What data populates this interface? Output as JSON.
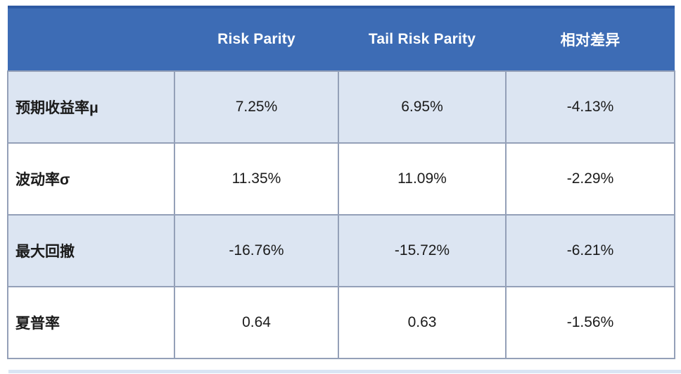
{
  "table": {
    "header": [
      "",
      "Risk Parity",
      "Tail Risk Parity",
      "相对差异"
    ],
    "rows": [
      {
        "label": "预期收益率μ",
        "values": [
          "7.25%",
          "6.95%",
          "-4.13%"
        ]
      },
      {
        "label": "波动率σ",
        "values": [
          "11.35%",
          "11.09%",
          "-2.29%"
        ]
      },
      {
        "label": "最大回撤",
        "values": [
          "-16.76%",
          "-15.72%",
          "-6.21%"
        ]
      },
      {
        "label": "夏普率",
        "values": [
          "0.64",
          "0.63",
          "-1.56%"
        ]
      }
    ],
    "colors": {
      "header_bg": "#3D6CB5",
      "header_top_border": "#2E5AA3",
      "header_text": "#FFFFFF",
      "row_bg": "#FFFFFF",
      "row_alt_bg": "#DCE5F2",
      "border": "#94A0B8",
      "body_text": "#1B1B1B",
      "bottom_strip": "#D9E5F4"
    }
  }
}
